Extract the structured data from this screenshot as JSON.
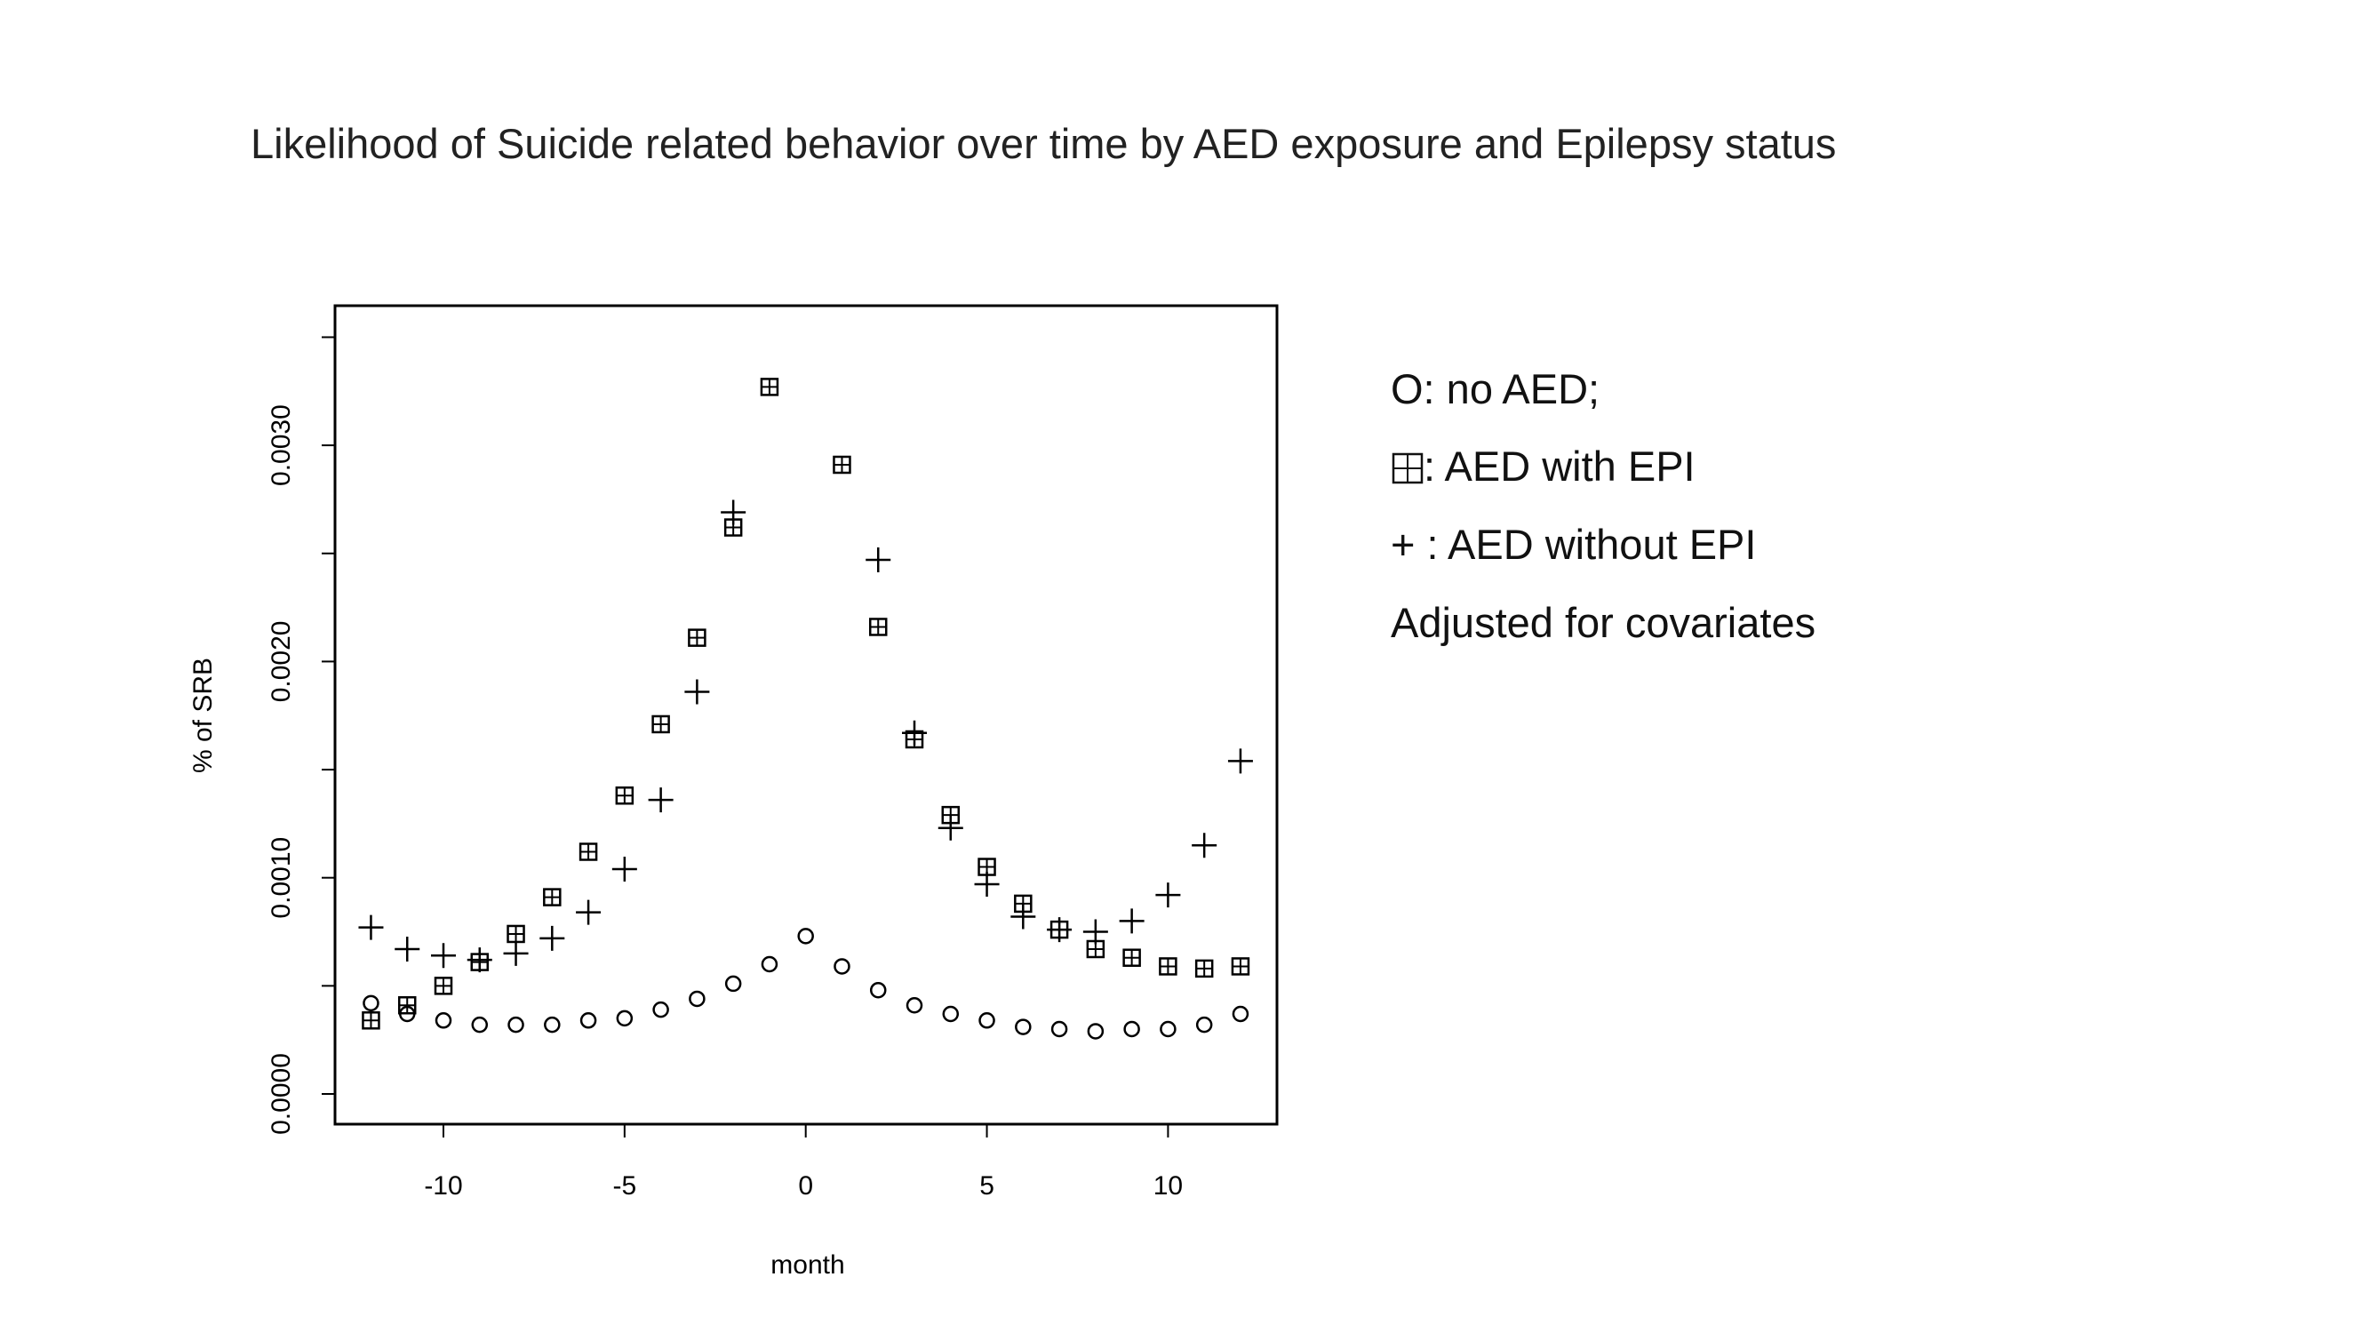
{
  "chart_data": {
    "type": "scatter",
    "title": "Likelihood of Suicide related behavior over time by AED exposure and Epilepsy status",
    "xlabel": "month",
    "ylabel": "% of SRB",
    "xlim": [
      -13,
      13
    ],
    "ylim": [
      0,
      0.0036
    ],
    "xticks": [
      -10,
      -5,
      0,
      5,
      10
    ],
    "xtick_labels": [
      "-10",
      "-5",
      "0",
      "5",
      "10"
    ],
    "yticks": [
      0,
      0.001,
      0.002,
      0.003
    ],
    "ytick_labels": [
      "0.0000",
      "0.0010",
      "0.0020",
      "0.0030"
    ],
    "grid": false,
    "legend_position": "right",
    "legend": [
      "O: no AED;",
      ": AED with EPI",
      "+ : AED without  EPI",
      "Adjusted for covariates"
    ],
    "x": [
      -12,
      -11,
      -10,
      -9,
      -8,
      -7,
      -6,
      -5,
      -4,
      -3,
      -2,
      -1,
      0,
      1,
      2,
      3,
      4,
      5,
      6,
      7,
      8,
      9,
      10,
      11,
      12
    ],
    "series": [
      {
        "name": "no AED",
        "marker": "circle",
        "values": [
          0.00042,
          0.00037,
          0.00034,
          0.00032,
          0.00032,
          0.00032,
          0.00034,
          0.00035,
          0.00039,
          0.00044,
          0.00051,
          0.0006,
          0.00073,
          0.00059,
          0.00048,
          0.00041,
          0.00037,
          0.00034,
          0.00031,
          0.0003,
          0.00029,
          0.0003,
          0.0003,
          0.00032,
          0.00037
        ]
      },
      {
        "name": "AED with EPI",
        "marker": "boxed-plus",
        "values": [
          0.00034,
          0.00041,
          0.0005,
          0.00061,
          0.00074,
          0.00091,
          0.00112,
          0.00138,
          0.00171,
          0.00211,
          0.00262,
          0.00327,
          null,
          0.00291,
          0.00216,
          0.00164,
          0.00129,
          0.00105,
          0.00088,
          0.00076,
          0.00067,
          0.00063,
          0.00059,
          0.00058,
          0.00059
        ]
      },
      {
        "name": "AED without EPI",
        "marker": "plus",
        "values": [
          0.00077,
          0.00067,
          0.00064,
          0.00062,
          0.00065,
          0.00072,
          0.00084,
          0.00104,
          0.00136,
          0.00186,
          0.00269,
          null,
          null,
          null,
          0.00247,
          0.00167,
          0.00123,
          0.00097,
          0.00082,
          0.00076,
          0.00075,
          0.0008,
          0.00092,
          0.00115,
          0.00154
        ]
      }
    ]
  }
}
